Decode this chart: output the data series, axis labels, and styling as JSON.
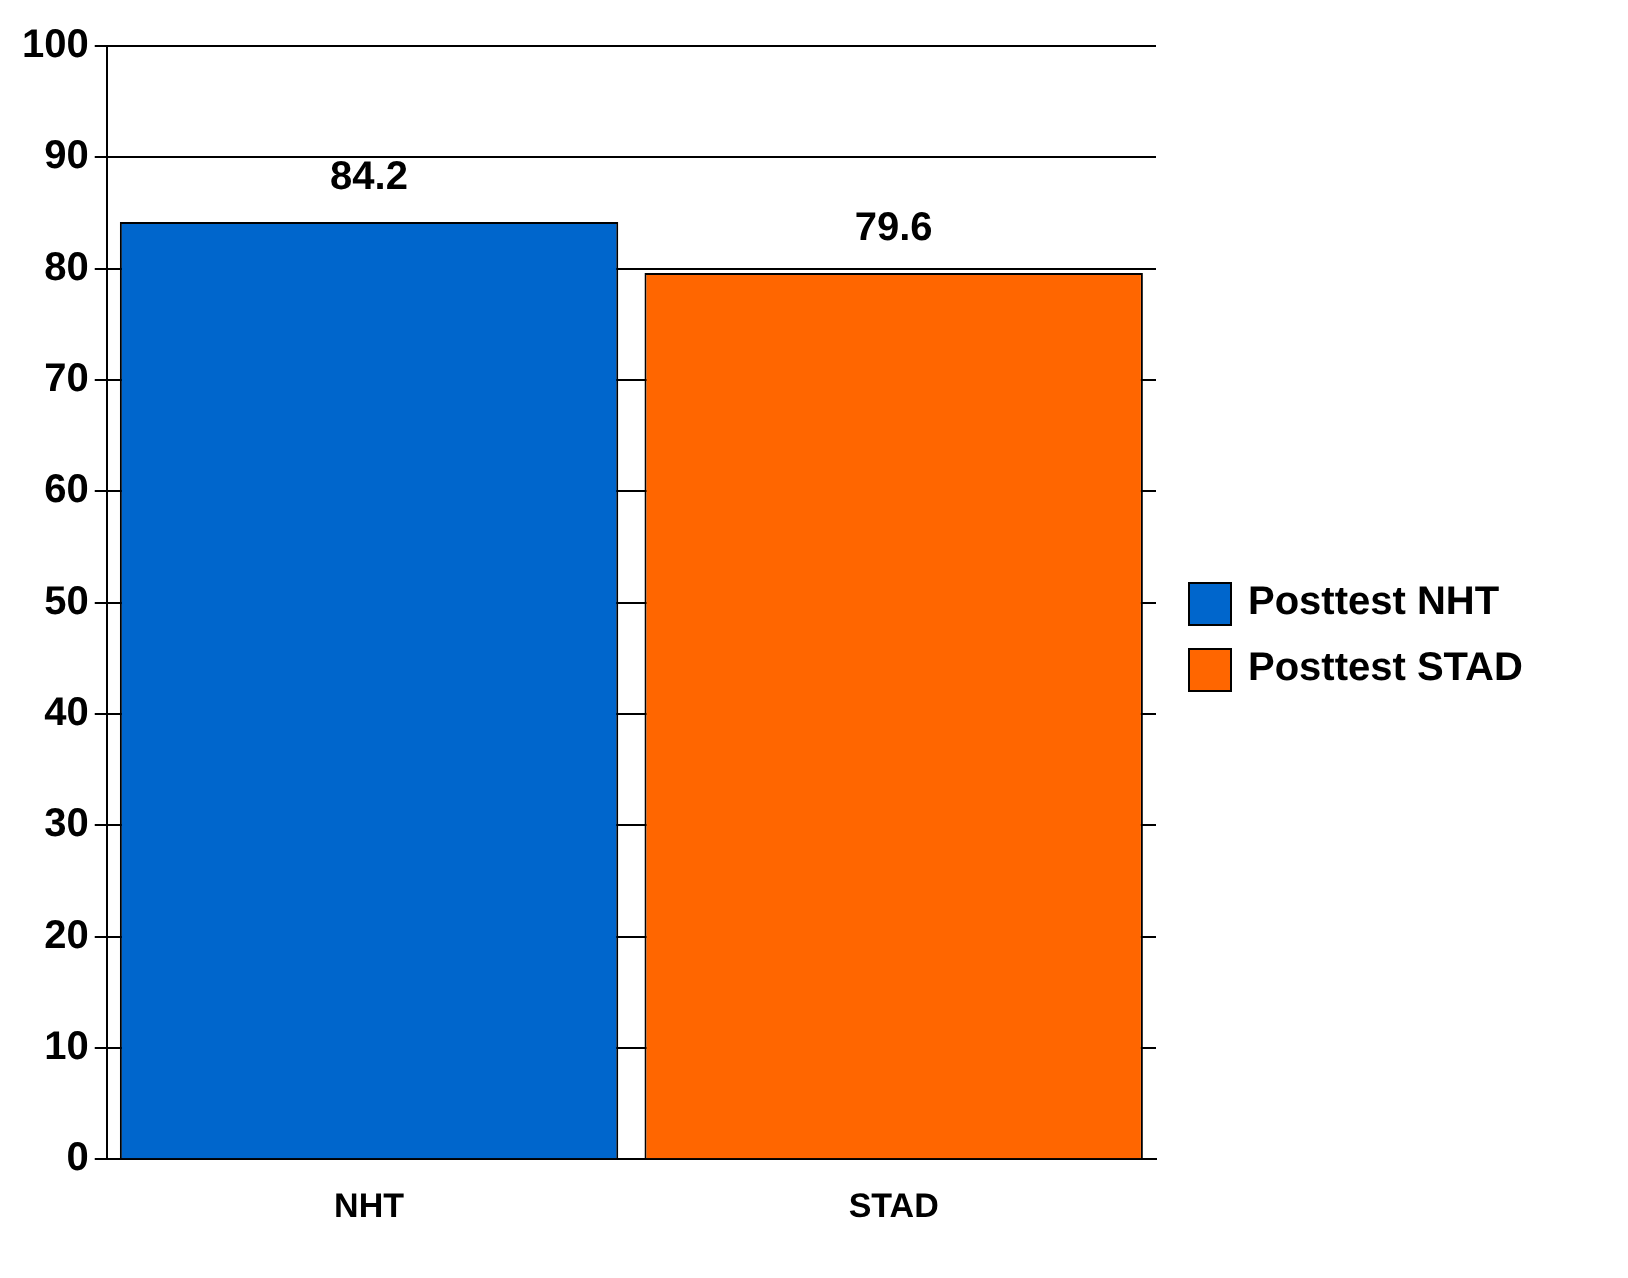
{
  "chart_data": {
    "type": "bar",
    "categories": [
      "NHT",
      "STAD"
    ],
    "series": [
      {
        "name": "Posttest NHT",
        "color": "#0066cc",
        "values": [
          84.2,
          null
        ]
      },
      {
        "name": "Posttest STAD",
        "color": "#ff6600",
        "values": [
          null,
          79.6
        ]
      }
    ],
    "ylim": [
      0,
      100
    ],
    "yticks": [
      0,
      10,
      20,
      30,
      40,
      50,
      60,
      70,
      80,
      90,
      100
    ],
    "grid": "y",
    "legend": "right",
    "data_labels": true
  }
}
